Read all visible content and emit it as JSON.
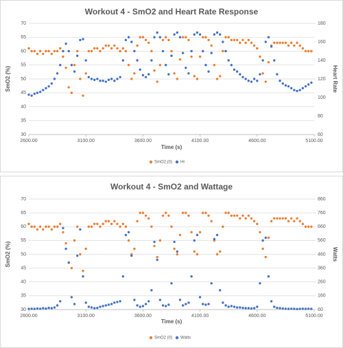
{
  "chart_data": [
    {
      "type": "scatter",
      "title": "Workout 4 - SmO2 and Heart Rate Response",
      "x_label": "Time (s)",
      "y_label": "SmO2 (%)",
      "y2_label": "Heart Rate",
      "xlim": [
        2600,
        5100
      ],
      "xticks": [
        {
          "value": 2600,
          "label": "2600.00"
        },
        {
          "value": 3100,
          "label": "3100.00"
        },
        {
          "value": 3600,
          "label": "3600.00"
        },
        {
          "value": 4100,
          "label": "4100.00"
        },
        {
          "value": 4600,
          "label": "4600.00"
        },
        {
          "value": 5100,
          "label": "5100.00"
        }
      ],
      "ylim": [
        30,
        70
      ],
      "yticks": [
        30,
        35,
        40,
        45,
        50,
        55,
        60,
        65,
        70
      ],
      "y2lim": [
        60,
        180
      ],
      "y2ticks": [
        60,
        80,
        100,
        120,
        140,
        160,
        180
      ],
      "grid": true,
      "x": [
        2600,
        2625,
        2650,
        2675,
        2700,
        2725,
        2750,
        2775,
        2800,
        2825,
        2850,
        2875,
        2900,
        2925,
        2950,
        2975,
        3000,
        3025,
        3050,
        3075,
        3100,
        3125,
        3150,
        3175,
        3200,
        3225,
        3250,
        3275,
        3300,
        3325,
        3350,
        3375,
        3400,
        3425,
        3450,
        3475,
        3500,
        3525,
        3550,
        3575,
        3600,
        3625,
        3650,
        3675,
        3700,
        3725,
        3750,
        3775,
        3800,
        3825,
        3850,
        3875,
        3900,
        3925,
        3950,
        3975,
        4000,
        4025,
        4050,
        4075,
        4100,
        4125,
        4150,
        4175,
        4200,
        4225,
        4250,
        4275,
        4300,
        4325,
        4350,
        4375,
        4400,
        4425,
        4450,
        4475,
        4500,
        4525,
        4550,
        4575,
        4600,
        4625,
        4650,
        4675,
        4700,
        4725,
        4750,
        4775,
        4800,
        4825,
        4850,
        4875,
        4900,
        4925,
        4950,
        4975,
        5000,
        5025,
        5050,
        5075
      ],
      "series": [
        {
          "name": "SmO2 (0)",
          "color": "#ed7d31",
          "values": [
            61,
            60,
            60,
            59,
            60,
            59,
            60,
            60,
            59,
            60,
            60,
            61,
            58,
            54,
            47,
            45,
            55,
            60,
            50,
            44,
            52,
            60,
            60,
            61,
            61,
            60,
            61,
            62,
            62,
            61,
            62,
            61,
            60,
            61,
            60,
            55,
            50,
            52,
            62,
            65,
            65,
            64,
            63,
            60,
            53,
            49,
            55,
            64,
            65,
            64,
            60,
            52,
            50,
            57,
            65,
            65,
            64,
            58,
            51,
            50,
            58,
            65,
            65,
            64,
            62,
            55,
            50,
            51,
            60,
            65,
            65,
            64,
            64,
            64,
            63,
            64,
            63,
            64,
            63,
            62,
            61,
            58,
            52,
            49,
            56,
            62,
            63,
            63,
            63,
            63,
            63,
            62,
            63,
            62,
            63,
            62,
            61,
            60,
            60,
            60
          ]
        },
        {
          "name": "Hr",
          "color": "#4472c4",
          "axis": "y2",
          "values": [
            103,
            102,
            104,
            105,
            106,
            108,
            110,
            112,
            115,
            120,
            126,
            135,
            150,
            158,
            150,
            135,
            128,
            145,
            162,
            163,
            140,
            122,
            120,
            119,
            120,
            118,
            118,
            117,
            119,
            120,
            118,
            120,
            122,
            140,
            162,
            165,
            160,
            150,
            140,
            130,
            124,
            122,
            125,
            140,
            165,
            170,
            165,
            150,
            135,
            125,
            145,
            168,
            170,
            165,
            148,
            132,
            126,
            150,
            168,
            170,
            168,
            150,
            135,
            128,
            148,
            168,
            170,
            168,
            160,
            150,
            140,
            135,
            130,
            128,
            125,
            122,
            120,
            118,
            117,
            120,
            118,
            125,
            140,
            160,
            165,
            155,
            140,
            125,
            118,
            115,
            113,
            112,
            110,
            108,
            107,
            108,
            110,
            112,
            114,
            116
          ]
        }
      ]
    },
    {
      "type": "scatter",
      "title": "Workout 4 - SmO2 and Wattage",
      "x_label": "Time (s)",
      "y_label": "SmO2 (%)",
      "y2_label": "Watts",
      "xlim": [
        2600,
        5100
      ],
      "xticks": [
        {
          "value": 2600,
          "label": "2600.00"
        },
        {
          "value": 3100,
          "label": "3100.00"
        },
        {
          "value": 3600,
          "label": "3600.00"
        },
        {
          "value": 4100,
          "label": "4100.00"
        },
        {
          "value": 4600,
          "label": "4600.00"
        },
        {
          "value": 5100,
          "label": "5100.00"
        }
      ],
      "ylim": [
        30,
        70
      ],
      "yticks": [
        30,
        35,
        40,
        45,
        50,
        55,
        60,
        65,
        70
      ],
      "y2lim": [
        60,
        860
      ],
      "y2ticks": [
        60,
        160,
        260,
        360,
        460,
        560,
        660,
        760,
        860
      ],
      "grid": true,
      "x": [
        2600,
        2625,
        2650,
        2675,
        2700,
        2725,
        2750,
        2775,
        2800,
        2825,
        2850,
        2875,
        2900,
        2925,
        2950,
        2975,
        3000,
        3025,
        3050,
        3075,
        3100,
        3125,
        3150,
        3175,
        3200,
        3225,
        3250,
        3275,
        3300,
        3325,
        3350,
        3375,
        3400,
        3425,
        3450,
        3475,
        3500,
        3525,
        3550,
        3575,
        3600,
        3625,
        3650,
        3675,
        3700,
        3725,
        3750,
        3775,
        3800,
        3825,
        3850,
        3875,
        3900,
        3925,
        3950,
        3975,
        4000,
        4025,
        4050,
        4075,
        4100,
        4125,
        4150,
        4175,
        4200,
        4225,
        4250,
        4275,
        4300,
        4325,
        4350,
        4375,
        4400,
        4425,
        4450,
        4475,
        4500,
        4525,
        4550,
        4575,
        4600,
        4625,
        4650,
        4675,
        4700,
        4725,
        4750,
        4775,
        4800,
        4825,
        4850,
        4875,
        4900,
        4925,
        4950,
        4975,
        5000,
        5025,
        5050,
        5075
      ],
      "series": [
        {
          "name": "SmO2 (0)",
          "color": "#ed7d31",
          "values": [
            61,
            60,
            60,
            59,
            60,
            59,
            60,
            60,
            59,
            60,
            60,
            61,
            58,
            54,
            47,
            45,
            55,
            60,
            50,
            44,
            52,
            60,
            60,
            61,
            61,
            60,
            61,
            62,
            62,
            61,
            62,
            61,
            60,
            61,
            60,
            55,
            50,
            52,
            62,
            65,
            65,
            64,
            63,
            60,
            53,
            49,
            55,
            64,
            65,
            64,
            60,
            52,
            50,
            57,
            65,
            65,
            64,
            58,
            51,
            50,
            58,
            65,
            65,
            64,
            62,
            55,
            50,
            51,
            60,
            65,
            65,
            64,
            64,
            64,
            63,
            64,
            63,
            64,
            63,
            62,
            61,
            58,
            52,
            49,
            56,
            62,
            63,
            63,
            63,
            63,
            63,
            62,
            63,
            62,
            63,
            62,
            61,
            60,
            60,
            60
          ]
        },
        {
          "name": "Watts",
          "color": "#4472c4",
          "axis": "y2",
          "values": [
            65,
            66,
            65,
            68,
            66,
            70,
            67,
            72,
            70,
            75,
            90,
            120,
            650,
            500,
            400,
            150,
            100,
            450,
            640,
            300,
            110,
            80,
            75,
            70,
            72,
            80,
            85,
            90,
            95,
            100,
            110,
            115,
            120,
            300,
            600,
            620,
            450,
            130,
            90,
            80,
            85,
            100,
            120,
            200,
            550,
            420,
            130,
            90,
            85,
            95,
            250,
            550,
            480,
            130,
            90,
            100,
            110,
            300,
            560,
            600,
            150,
            100,
            95,
            100,
            250,
            570,
            600,
            200,
            110,
            90,
            80,
            85,
            80,
            75,
            75,
            72,
            70,
            70,
            68,
            70,
            80,
            250,
            560,
            580,
            300,
            120,
            80,
            72,
            70,
            68,
            66,
            65,
            66,
            65,
            64,
            65,
            66,
            65,
            66,
            65
          ]
        }
      ]
    }
  ]
}
